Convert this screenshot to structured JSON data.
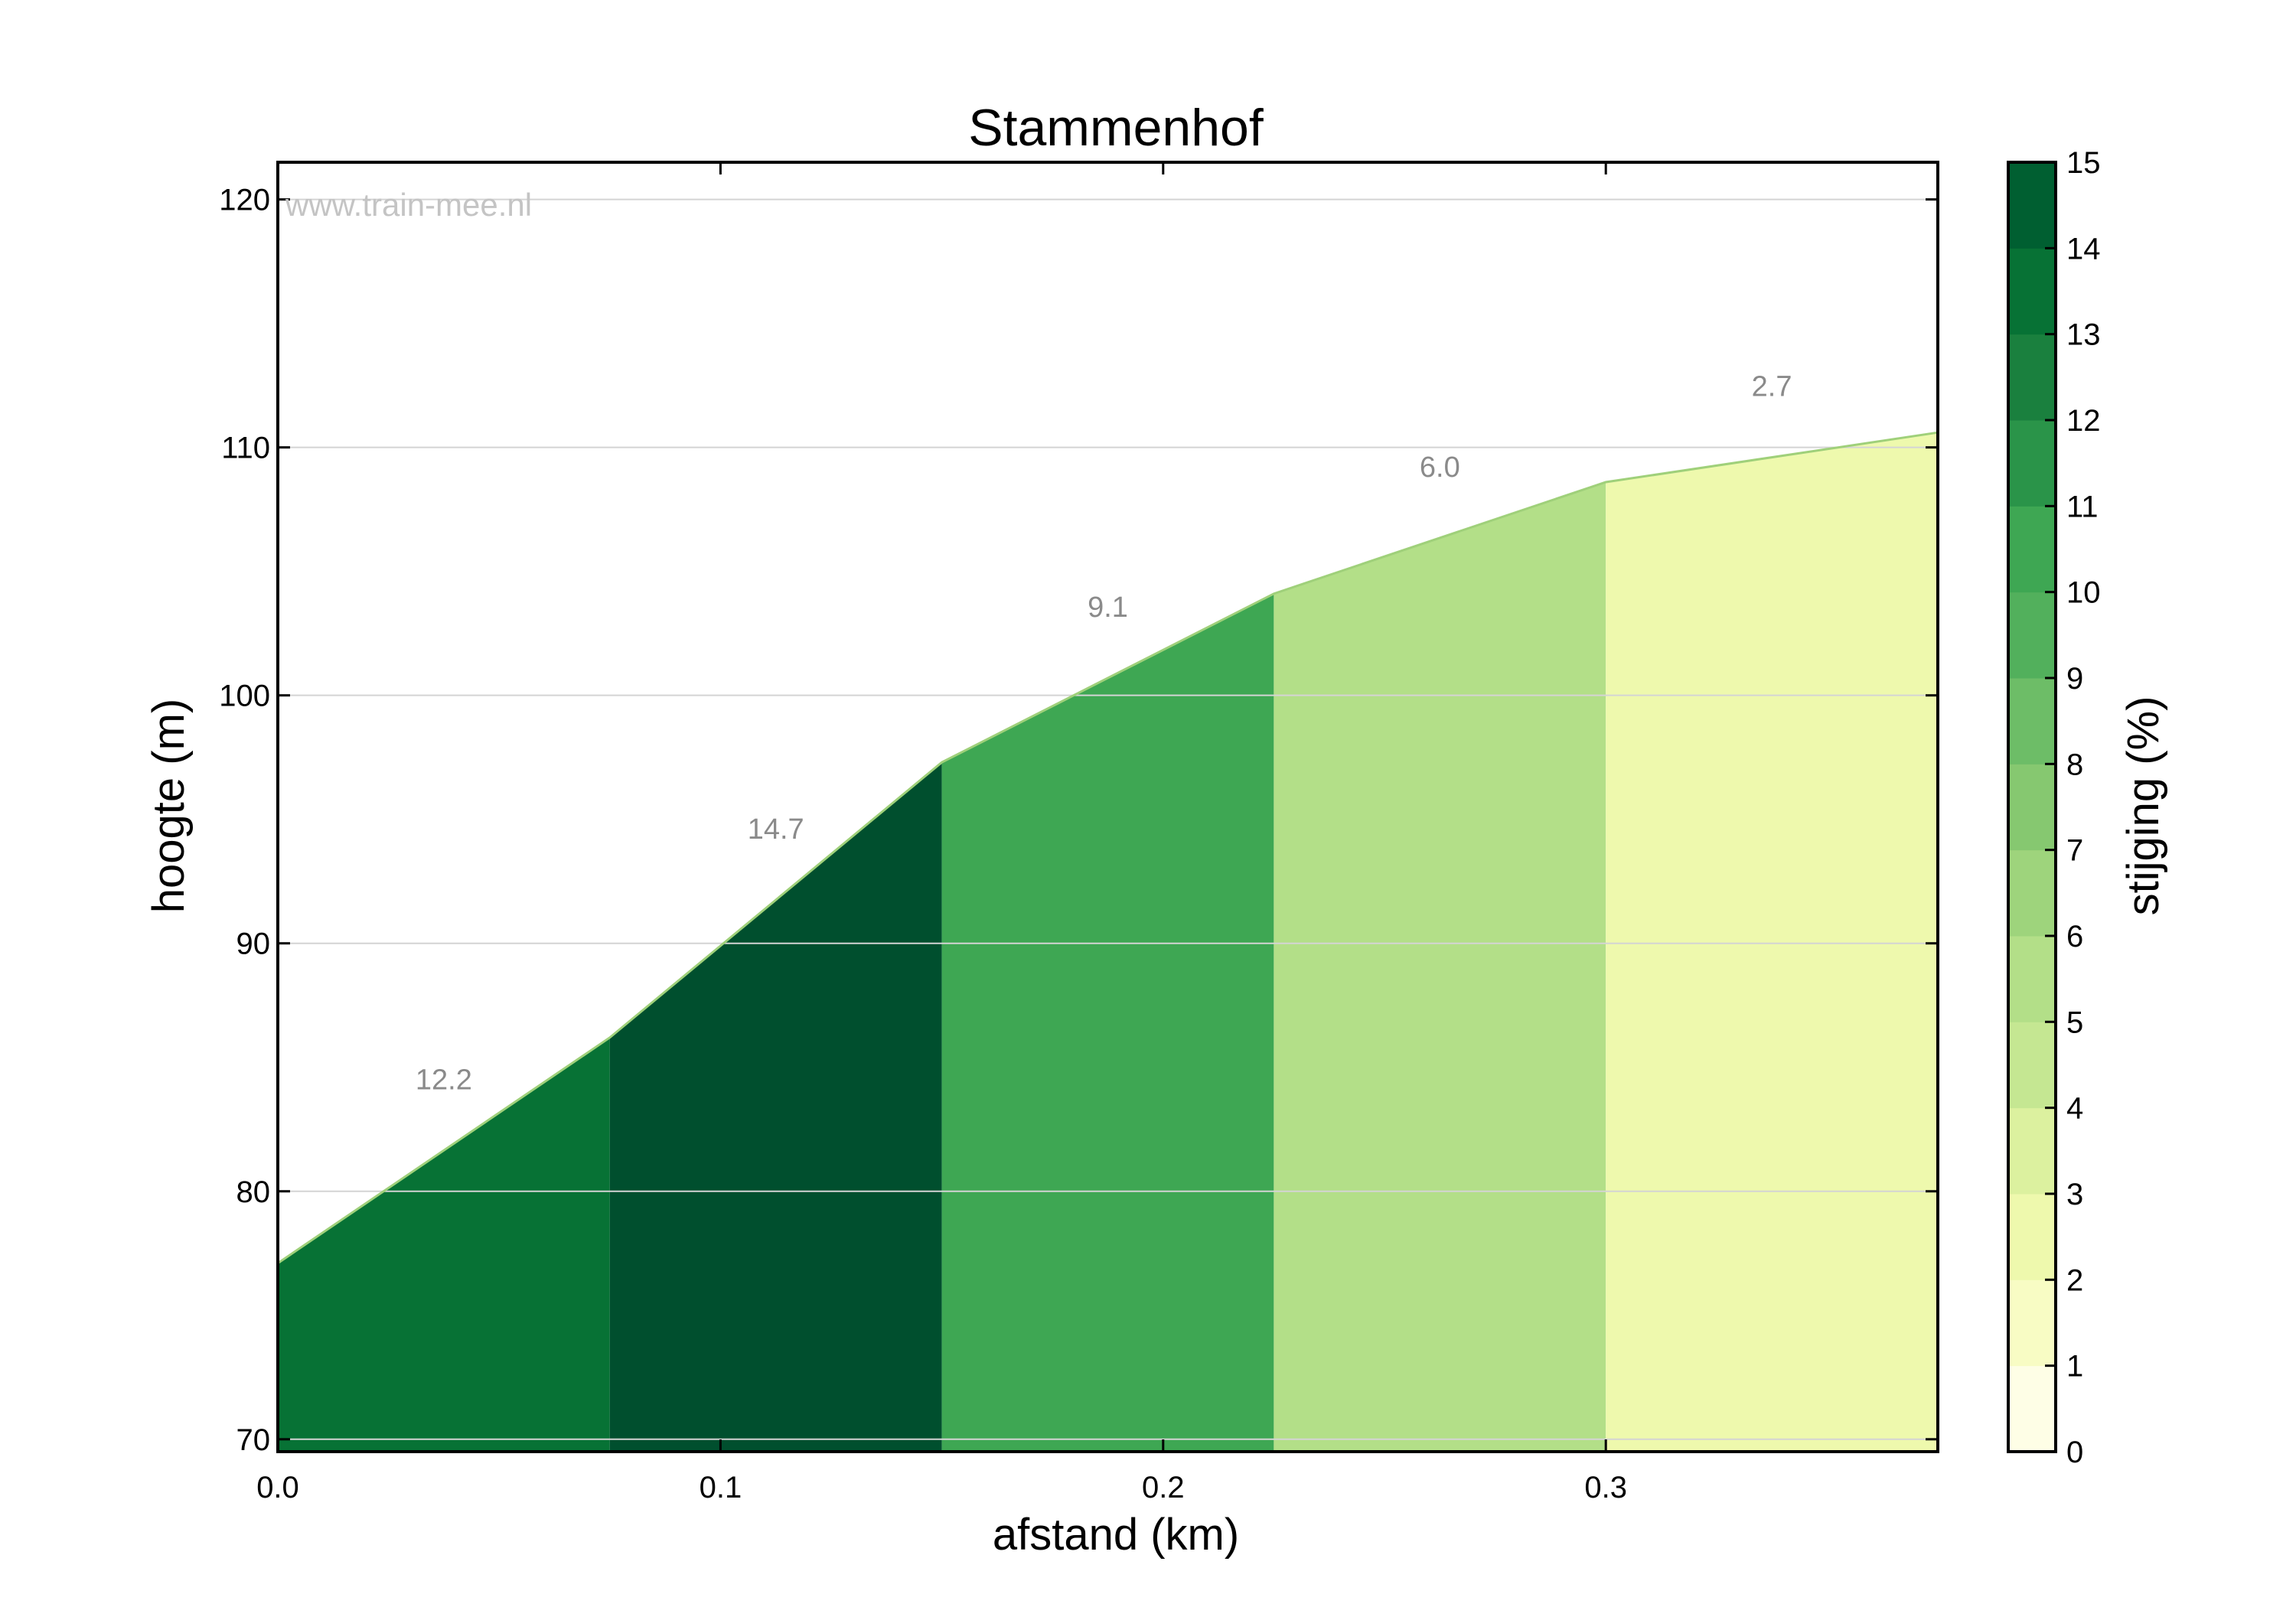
{
  "chart_data": {
    "type": "area",
    "title": "Stammenhof",
    "xlabel": "afstand (km)",
    "ylabel": "hoogte (m)",
    "watermark": "www.train-mee.nl",
    "xlim": [
      0.0,
      0.375
    ],
    "ylim": [
      69.5,
      121.5
    ],
    "x_ticks": [
      "0.0",
      "0.1",
      "0.2",
      "0.3"
    ],
    "y_ticks": [
      "70",
      "80",
      "90",
      "100",
      "110",
      "120"
    ],
    "grid": "horizontal",
    "points": [
      {
        "x": 0.0,
        "y": 77.1
      },
      {
        "x": 0.075,
        "y": 86.2
      },
      {
        "x": 0.15,
        "y": 97.3
      },
      {
        "x": 0.225,
        "y": 104.1
      },
      {
        "x": 0.3,
        "y": 108.6
      },
      {
        "x": 0.375,
        "y": 110.6
      }
    ],
    "segments": [
      {
        "label": "12.2",
        "value": 12.2,
        "color": "#077235"
      },
      {
        "label": "14.7",
        "value": 14.7,
        "color": "#004f2e"
      },
      {
        "label": "9.1",
        "value": 9.1,
        "color": "#3ea753"
      },
      {
        "label": "6.0",
        "value": 6.0,
        "color": "#b3df88"
      },
      {
        "label": "2.7",
        "value": 2.7,
        "color": "#eef9ad"
      }
    ],
    "colorbar": {
      "label": "stijging (%)",
      "min": 0,
      "max": 15,
      "ticks": [
        "0",
        "1",
        "2",
        "3",
        "4",
        "5",
        "6",
        "7",
        "8",
        "9",
        "10",
        "11",
        "12",
        "13",
        "14",
        "15"
      ],
      "colors": [
        "#fefee6",
        "#f8fcc4",
        "#eef9ad",
        "#dcf19f",
        "#c5e792",
        "#b3df88",
        "#9ed47c",
        "#86c870",
        "#6dbd67",
        "#52b05c",
        "#3ea753",
        "#2a9449",
        "#1a803e",
        "#077235",
        "#005f31"
      ]
    }
  }
}
